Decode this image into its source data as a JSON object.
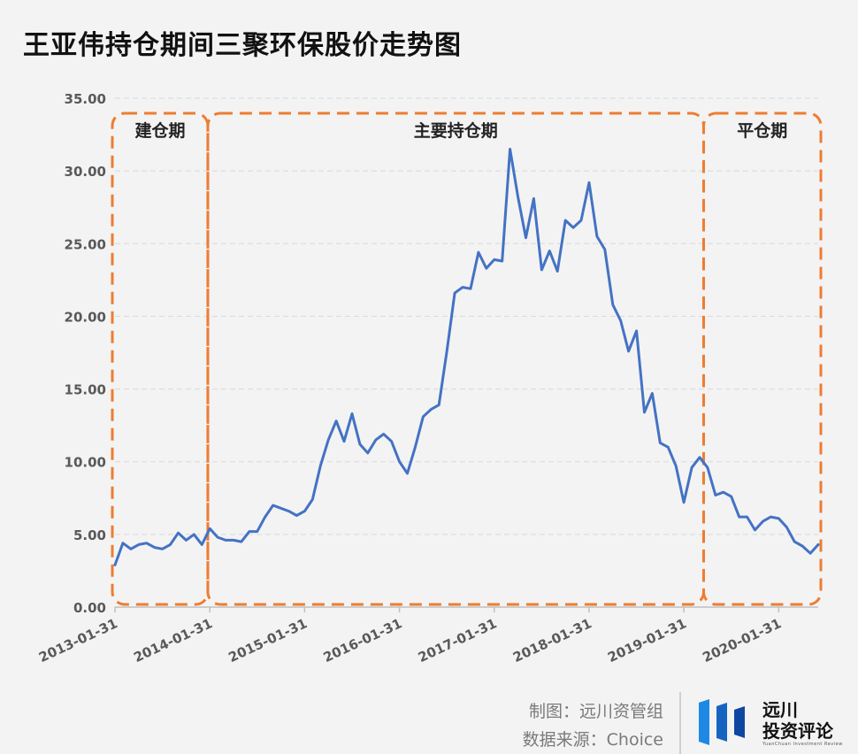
{
  "page": {
    "title": "王亚伟持仓期间三聚环保股价走势图"
  },
  "credits": {
    "chart_by": "制图：远川资管组",
    "source": "数据来源：Choice"
  },
  "brand": {
    "name_line1": "远川",
    "name_line2": "投资评论",
    "tagline": "YuanChuan Investment Review"
  },
  "colors": {
    "line": "#4472c4",
    "dashed_box": "#ed7d31",
    "background": "#f3f3f3"
  },
  "chart_data": {
    "type": "line",
    "title": "王亚伟持仓期间三聚环保股价走势图",
    "xlabel": "",
    "ylabel": "",
    "ylim": [
      0,
      35
    ],
    "y_ticks": [
      "0.00",
      "5.00",
      "10.00",
      "15.00",
      "20.00",
      "25.00",
      "30.00",
      "35.00"
    ],
    "x_ticks": [
      "2013-01-31",
      "2014-01-31",
      "2015-01-31",
      "2016-01-31",
      "2017-01-31",
      "2018-01-31",
      "2019-01-31",
      "2020-01-31"
    ],
    "grid": true,
    "series": [
      {
        "values": [
          2.9,
          4.4,
          4.0,
          4.3,
          4.4,
          4.1,
          4.0,
          4.3,
          5.1,
          4.6,
          5.0,
          4.3,
          5.4,
          4.8,
          4.6,
          4.6,
          4.5,
          5.2,
          5.2,
          6.2,
          7.0,
          6.8,
          6.6,
          6.3,
          6.6,
          7.4,
          9.7,
          11.5,
          12.8,
          11.4,
          13.3,
          11.2,
          10.6,
          11.5,
          11.9,
          11.4,
          10.0,
          9.2,
          11.0,
          13.1,
          13.6,
          13.9,
          17.6,
          21.6,
          22.0,
          21.9,
          24.4,
          23.3,
          23.9,
          23.8,
          31.5,
          28.2,
          25.4,
          28.1,
          23.2,
          24.5,
          23.1,
          26.6,
          26.1,
          26.6,
          29.2,
          25.5,
          24.6,
          20.8,
          19.7,
          17.6,
          19.0,
          13.4,
          14.7,
          11.3,
          11.0,
          9.7,
          7.2,
          9.6,
          10.3,
          9.6,
          7.7,
          7.9,
          7.6,
          6.2,
          6.2,
          5.3,
          5.9,
          6.2,
          6.1,
          5.5,
          4.5,
          4.2,
          3.7,
          4.3
        ]
      }
    ],
    "annotations": [
      {
        "label": "建仓期",
        "x_start": 0,
        "x_end": 11.75
      },
      {
        "label": "主要持仓期",
        "x_start": 11.75,
        "x_end": 74.5
      },
      {
        "label": "平仓期",
        "x_start": 74.5,
        "x_end": 89.5
      }
    ]
  }
}
